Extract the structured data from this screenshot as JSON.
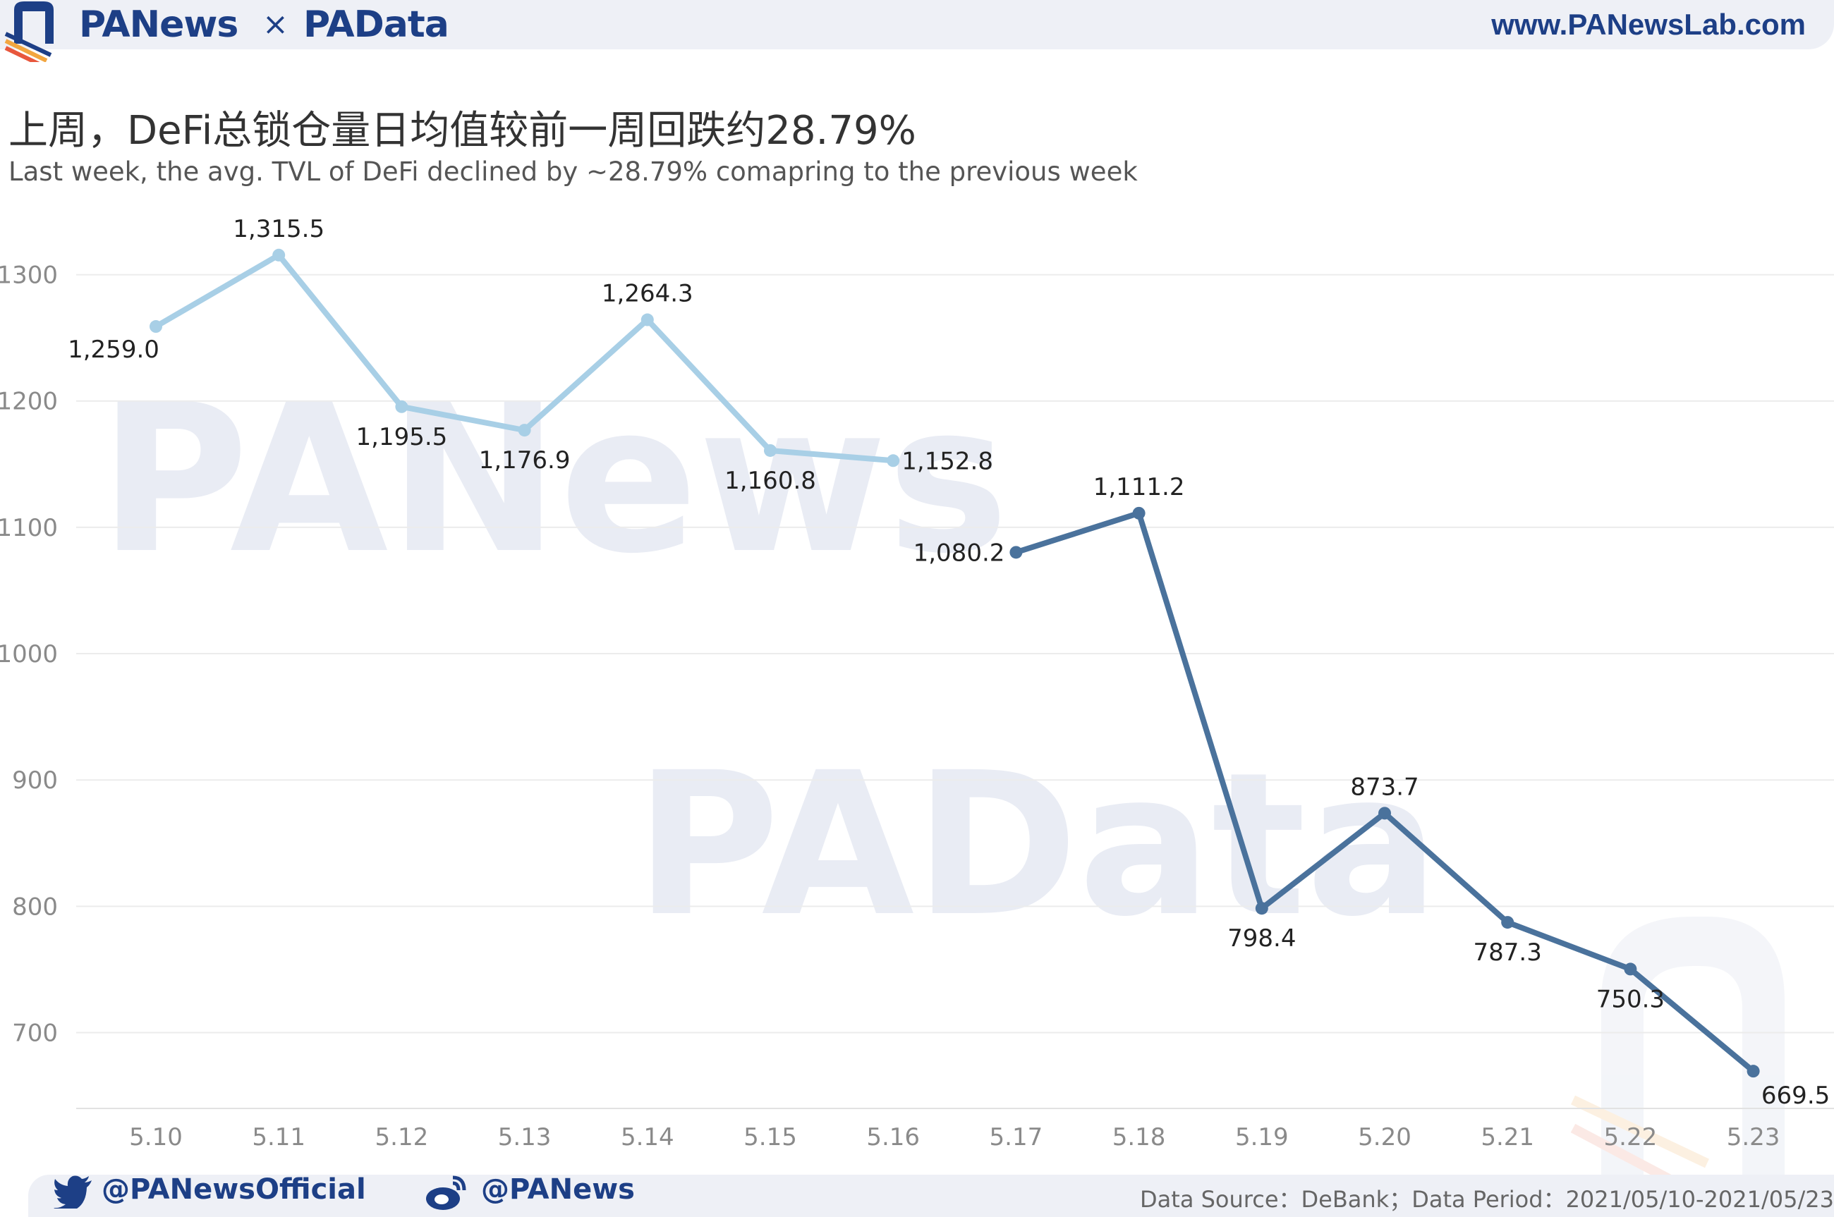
{
  "header": {
    "brand_left": "PANews",
    "separator": "×",
    "brand_right": "PAData",
    "site_url": "www.PANewsLab.com"
  },
  "titles": {
    "title": "上周，DeFi总锁仓量日均值较前一周回跌约28.79%",
    "subtitle": "Last week, the avg. TVL of DeFi declined by ~28.79%  comapring to the previous week"
  },
  "watermarks": {
    "top": "PANews",
    "middle": "PAData"
  },
  "colors": {
    "series_previous": "#a8cfe6",
    "series_last": "#4a729c",
    "brand": "#1d3f86"
  },
  "chart_data": {
    "type": "line",
    "x": [
      "5.10",
      "5.11",
      "5.12",
      "5.13",
      "5.14",
      "5.15",
      "5.16",
      "5.17",
      "5.18",
      "5.19",
      "5.20",
      "5.21",
      "5.22",
      "5.23"
    ],
    "ylim": [
      640,
      1350
    ],
    "yticks": [
      700,
      800,
      900,
      1000,
      1100,
      1200,
      1300
    ],
    "ytick_labels": [
      "700",
      "800",
      "900",
      "1000",
      "1100",
      "1200",
      "1300"
    ],
    "grid": true,
    "series": [
      {
        "x": [
          "5.10",
          "5.11",
          "5.12",
          "5.13",
          "5.14",
          "5.15",
          "5.16"
        ],
        "values": [
          1259.0,
          1315.5,
          1195.5,
          1176.9,
          1264.3,
          1160.8,
          1152.8
        ],
        "labels": [
          "1,259.0",
          "1,315.5",
          "1,195.5",
          "1,176.9",
          "1,264.3",
          "1,160.8",
          "1,152.8"
        ],
        "color": "#a8cfe6"
      },
      {
        "x": [
          "5.17",
          "5.18",
          "5.19",
          "5.20",
          "5.21",
          "5.22",
          "5.23"
        ],
        "values": [
          1080.2,
          1111.2,
          798.4,
          873.7,
          787.3,
          750.3,
          669.5
        ],
        "labels": [
          "1,080.2",
          "1,111.2",
          "798.4",
          "873.7",
          "787.3",
          "750.3",
          "669.5"
        ],
        "color": "#4a729c"
      }
    ]
  },
  "footer": {
    "twitter": "@PANewsOfficial",
    "weibo": "@PANews",
    "source": "Data Source：DeBank；Data Period：2021/05/10-2021/05/23"
  }
}
